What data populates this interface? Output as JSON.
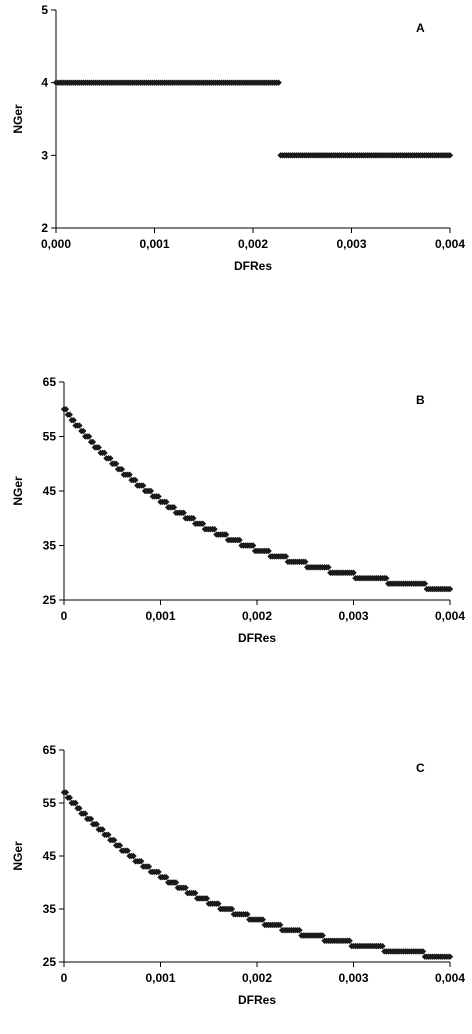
{
  "colors": {
    "marker": "#1a1a1a",
    "axis": "#000000",
    "background": "#ffffff"
  },
  "chart_data": [
    {
      "type": "scatter",
      "panel_label": "A",
      "xlabel": "DFRes",
      "ylabel": "NGer",
      "xlim": [
        0,
        0.004
      ],
      "ylim": [
        2,
        5
      ],
      "xticks": [
        0,
        0.001,
        0.002,
        0.003,
        0.004
      ],
      "xtick_labels": [
        "0,000",
        "0,001",
        "0,002",
        "0,003",
        "0,004"
      ],
      "yticks": [
        2,
        3,
        4,
        5
      ],
      "ytick_labels": [
        "2",
        "3",
        "4",
        "5"
      ],
      "grid": false,
      "series": [
        {
          "sampling": {
            "x_start": 0,
            "x_end": 0.004,
            "step": 2e-05
          },
          "rule": "step",
          "steps": [
            {
              "x_from": 0,
              "x_to": 0.00226,
              "y": 4
            },
            {
              "x_from": 0.00228,
              "x_to": 0.004,
              "y": 3
            }
          ]
        }
      ]
    },
    {
      "type": "scatter",
      "panel_label": "B",
      "xlabel": "DFRes",
      "ylabel": "NGer",
      "xlim": [
        0,
        0.004
      ],
      "ylim": [
        25,
        65
      ],
      "xticks": [
        0,
        0.001,
        0.002,
        0.003,
        0.004
      ],
      "xtick_labels": [
        "0",
        "0,001",
        "0,002",
        "0,003",
        "0,004"
      ],
      "yticks": [
        25,
        35,
        45,
        55,
        65
      ],
      "ytick_labels": [
        "25",
        "35",
        "45",
        "55",
        "65"
      ],
      "grid": false,
      "series": [
        {
          "sampling": {
            "x_start": 0,
            "x_end": 0.004,
            "step": 2e-05
          },
          "rule": "integer-decay",
          "y_start": 60,
          "y_end": 27,
          "decay": 0.0016
        }
      ]
    },
    {
      "type": "scatter",
      "panel_label": "C",
      "xlabel": "DFRes",
      "ylabel": "NGer",
      "xlim": [
        0,
        0.004
      ],
      "ylim": [
        25,
        65
      ],
      "xticks": [
        0,
        0.001,
        0.002,
        0.003,
        0.004
      ],
      "xtick_labels": [
        "0",
        "0,001",
        "0,002",
        "0,003",
        "0,004"
      ],
      "yticks": [
        25,
        35,
        45,
        55,
        65
      ],
      "ytick_labels": [
        "25",
        "35",
        "45",
        "55",
        "65"
      ],
      "grid": false,
      "series": [
        {
          "sampling": {
            "x_start": 0,
            "x_end": 0.004,
            "step": 2e-05
          },
          "rule": "integer-decay",
          "y_start": 57,
          "y_end": 26,
          "decay": 0.0016
        }
      ]
    }
  ]
}
